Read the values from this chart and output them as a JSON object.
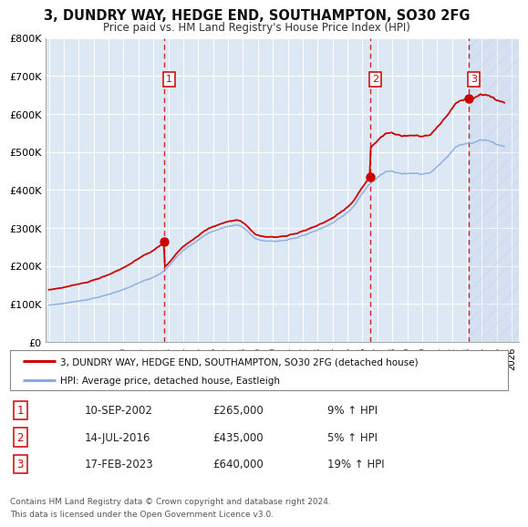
{
  "title": "3, DUNDRY WAY, HEDGE END, SOUTHAMPTON, SO30 2FG",
  "subtitle": "Price paid vs. HM Land Registry's House Price Index (HPI)",
  "ylim": [
    0,
    800000
  ],
  "xlim_start": 1994.8,
  "xlim_end": 2026.5,
  "yticks": [
    0,
    100000,
    200000,
    300000,
    400000,
    500000,
    600000,
    700000,
    800000
  ],
  "ytick_labels": [
    "£0",
    "£100K",
    "£200K",
    "£300K",
    "£400K",
    "£500K",
    "£600K",
    "£700K",
    "£800K"
  ],
  "xticks": [
    1995,
    1996,
    1997,
    1998,
    1999,
    2000,
    2001,
    2002,
    2003,
    2004,
    2005,
    2006,
    2007,
    2008,
    2009,
    2010,
    2011,
    2012,
    2013,
    2014,
    2015,
    2016,
    2017,
    2018,
    2019,
    2020,
    2021,
    2022,
    2023,
    2024,
    2025,
    2026
  ],
  "fig_bg_color": "#ffffff",
  "plot_bg_color": "#dde8f5",
  "grid_color": "#ffffff",
  "red_line_color": "#cc0000",
  "blue_line_color": "#88aadd",
  "vline_color": "#cc0000",
  "hatch_color": "#bbccee",
  "transactions": [
    {
      "num": 1,
      "date": 2002.71,
      "price": 265000,
      "label": "10-SEP-2002",
      "price_str": "£265,000",
      "pct": "9% ↑ HPI"
    },
    {
      "num": 2,
      "date": 2016.54,
      "price": 435000,
      "label": "14-JUL-2016",
      "price_str": "£435,000",
      "pct": "5% ↑ HPI"
    },
    {
      "num": 3,
      "date": 2023.12,
      "price": 640000,
      "label": "17-FEB-2023",
      "price_str": "£640,000",
      "pct": "19% ↑ HPI"
    }
  ],
  "legend_label_red": "3, DUNDRY WAY, HEDGE END, SOUTHAMPTON, SO30 2FG (detached house)",
  "legend_label_blue": "HPI: Average price, detached house, Eastleigh",
  "footer1": "Contains HM Land Registry data © Crown copyright and database right 2024.",
  "footer2": "This data is licensed under the Open Government Licence v3.0."
}
